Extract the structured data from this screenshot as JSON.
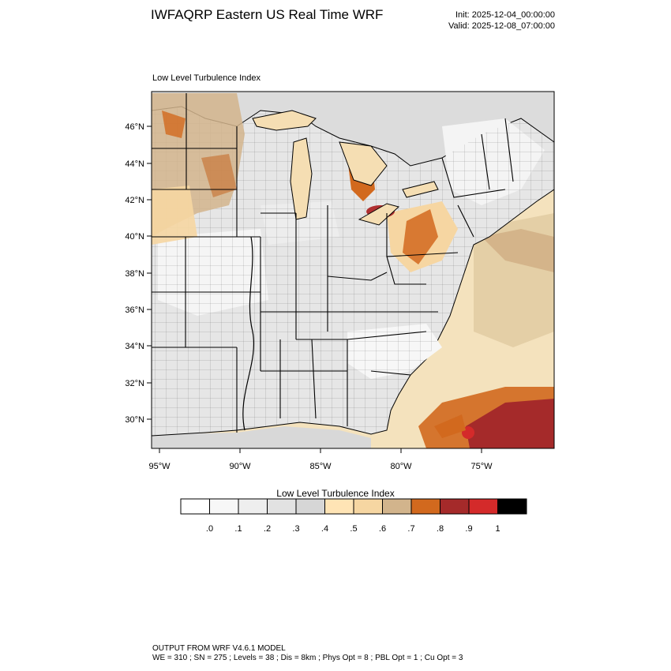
{
  "header": {
    "title": "IWFAQRP Eastern US Real Time WRF",
    "init": "Init: 2025-12-04_00:00:00",
    "valid": "Valid: 2025-12-08_07:00:00"
  },
  "panel": {
    "title": "Low Level Turbulence Index"
  },
  "map": {
    "lat_labels": [
      "46°N",
      "44°N",
      "42°N",
      "40°N",
      "38°N",
      "36°N",
      "34°N",
      "32°N",
      "30°N"
    ],
    "lon_labels": [
      "95°W",
      "90°W",
      "85°W",
      "80°W",
      "75°W"
    ],
    "colors": {
      "land_base": "#e6e6e6",
      "ocean_base": "#f4e2bd",
      "lakes": "#f5deb3",
      "state_lines": "#000000",
      "county_lines": "#222222"
    }
  },
  "colorbar": {
    "title": "Low Level Turbulence Index",
    "tick_labels": [
      ".0",
      ".1",
      ".2",
      ".3",
      ".4",
      ".5",
      ".6",
      ".7",
      ".8",
      ".9",
      "1"
    ],
    "colors": [
      "#ffffff",
      "#f7f7f7",
      "#eeeeee",
      "#e2e2e2",
      "#d6d6d6",
      "#ffe4b5",
      "#f6d6a2",
      "#d2b48c",
      "#d2691e",
      "#a52a2a",
      "#d42a2a",
      "#000000"
    ]
  },
  "footer": {
    "line1": "OUTPUT FROM WRF V4.6.1 MODEL",
    "line2": "WE = 310 ; SN = 275 ; Levels = 38 ; Dis = 8km ; Phys Opt = 8 ; PBL Opt = 1 ; Cu Opt = 3"
  }
}
